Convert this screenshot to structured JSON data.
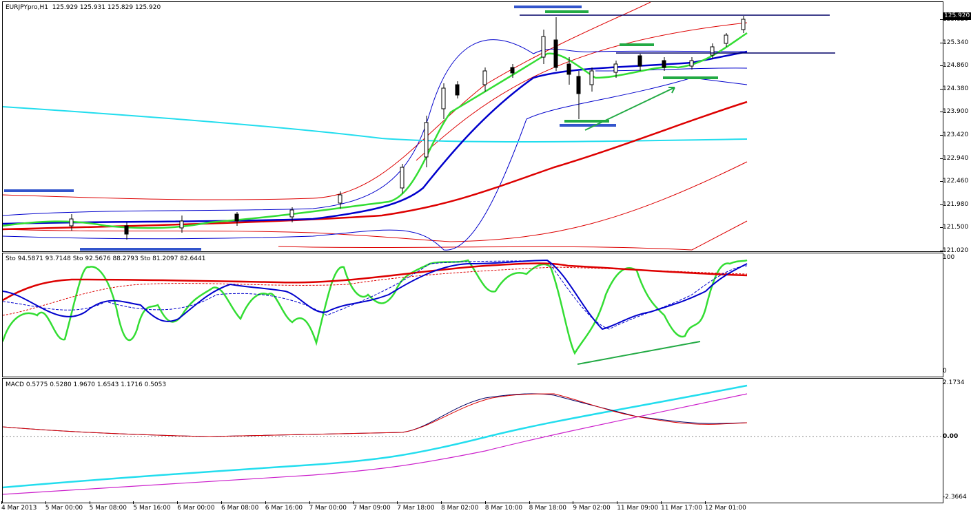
{
  "header": {
    "symbol": "EURJPYpro,H1",
    "ohlc": "125.929 125.931 125.829 125.920"
  },
  "price_axis": {
    "current": "125.920",
    "ticks": [
      "125.820",
      "125.340",
      "124.860",
      "124.380",
      "123.900",
      "123.420",
      "122.940",
      "122.460",
      "121.980",
      "121.500",
      "121.020"
    ]
  },
  "stoch_pane": {
    "label": "Sto 94.5871 93.7148  Sto 92.5676 88.2793  Sto 81.2097 82.6441",
    "max": "100",
    "min": "0"
  },
  "macd_pane": {
    "label": "MACD 0.5775 0.5280 1.9670 1.6543 1.1716 0.5053",
    "max": "2.1734",
    "zero": "0.00",
    "min": "-2.3664"
  },
  "time_axis": {
    "labels": [
      "4 Mar 2013",
      "5 Mar 00:00",
      "5 Mar 08:00",
      "5 Mar 16:00",
      "6 Mar 00:00",
      "6 Mar 08:00",
      "6 Mar 16:00",
      "7 Mar 00:00",
      "7 Mar 09:00",
      "7 Mar 18:00",
      "8 Mar 02:00",
      "8 Mar 10:00",
      "8 Mar 18:00",
      "9 Mar 02:00",
      "11 Mar 09:00",
      "11 Mar 17:00",
      "12 Mar 01:00"
    ]
  },
  "colors": {
    "green": "#33dd33",
    "blue": "#0000cc",
    "red": "#dd0000",
    "cyan": "#22ddee",
    "magenta": "#cc22cc",
    "marker_blue": "#3355cc",
    "marker_green": "#22aa44"
  }
}
